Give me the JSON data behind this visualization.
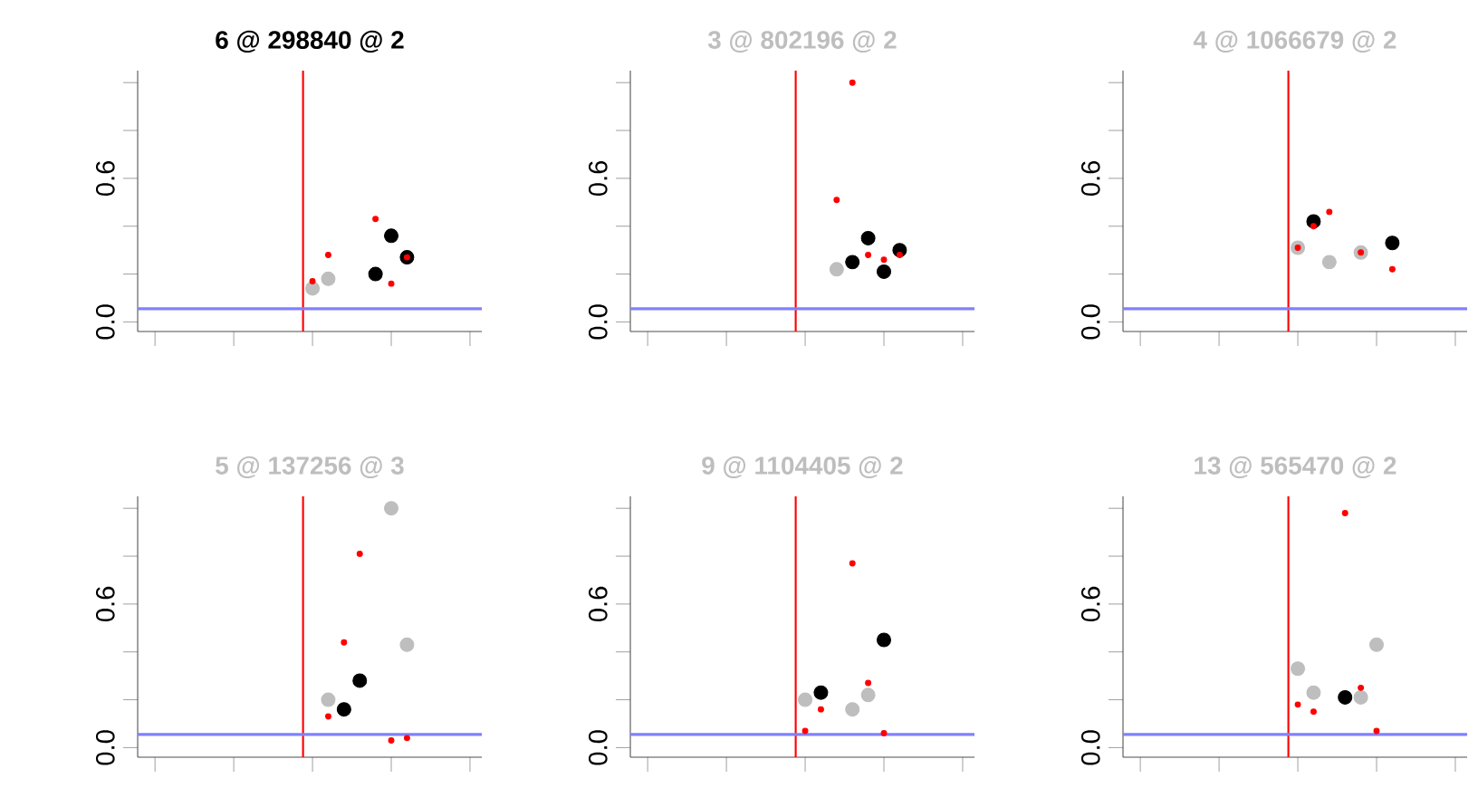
{
  "chart_data": [
    {
      "type": "scatter",
      "title": "6 @ 298840 @ 2",
      "marker": "circle",
      "tick_labels": "y",
      "ylim": [
        -0.04,
        1.05
      ],
      "categories": [
        null,
        null,
        null,
        null,
        null,
        null,
        null,
        null,
        null,
        null,
        null,
        null,
        null,
        null,
        null,
        null,
        null,
        null,
        null,
        null,
        null,
        null
      ],
      "yticks": [
        {
          "value": 0,
          "label": "0.0"
        },
        {
          "value": 0.2,
          "label": null
        },
        {
          "value": 0.4,
          "label": null
        },
        {
          "value": 0.6,
          "label": "0.6"
        },
        {
          "value": 0.8,
          "label": null
        },
        {
          "value": 1.0,
          "label": null
        }
      ],
      "ref_lines": [
        {
          "axis": "y",
          "value": 0.055,
          "color": "#8080ff"
        }
      ],
      "series": [
        {
          "color": "#bebebe",
          "values": [
            null,
            null,
            null,
            null,
            null,
            null,
            null,
            null,
            null,
            null,
            null,
            0.14,
            0.18,
            null,
            null,
            null,
            null,
            null,
            null,
            null,
            null,
            null
          ]
        },
        {
          "color": "#000000",
          "values": [
            null,
            null,
            null,
            null,
            null,
            null,
            null,
            null,
            null,
            null,
            null,
            null,
            null,
            null,
            null,
            0.2,
            0.36,
            0.27,
            null,
            null,
            null,
            null
          ]
        },
        {
          "color": "#ff0000",
          "values": [
            null,
            null,
            null,
            null,
            null,
            null,
            null,
            null,
            null,
            null,
            null,
            0.17,
            0.28,
            null,
            null,
            0.43,
            0.16,
            0.27,
            null,
            null,
            null,
            null
          ]
        }
      ]
    },
    {
      "type": "scatter",
      "title": "3 @ 802196 @ 2",
      "marker": "circle",
      "tick_labels": "y",
      "ylim": [
        -0.04,
        1.05
      ],
      "categories": [
        null,
        null,
        null,
        null,
        null,
        null,
        null,
        null,
        null,
        null,
        null,
        null,
        null,
        null,
        null,
        null,
        null,
        null,
        null,
        null,
        null,
        null
      ],
      "yticks": [
        {
          "value": 0,
          "label": "0.0"
        },
        {
          "value": 0.2,
          "label": null
        },
        {
          "value": 0.4,
          "label": null
        },
        {
          "value": 0.6,
          "label": "0.6"
        },
        {
          "value": 0.8,
          "label": null
        },
        {
          "value": 1.0,
          "label": null
        }
      ],
      "ref_lines": [
        {
          "axis": "y",
          "value": 0.055,
          "color": "#8080ff"
        }
      ],
      "series": [
        {
          "color": "#bebebe",
          "values": [
            null,
            null,
            null,
            null,
            null,
            null,
            null,
            null,
            null,
            null,
            null,
            null,
            null,
            0.22,
            null,
            null,
            null,
            null,
            null,
            null,
            null,
            null
          ]
        },
        {
          "color": "#000000",
          "values": [
            null,
            null,
            null,
            null,
            null,
            null,
            null,
            null,
            null,
            null,
            null,
            null,
            null,
            null,
            0.25,
            0.35,
            0.21,
            0.3,
            null,
            null,
            null,
            null
          ]
        },
        {
          "color": "#ff0000",
          "values": [
            null,
            null,
            null,
            null,
            null,
            null,
            null,
            null,
            null,
            null,
            null,
            null,
            null,
            0.51,
            1.0,
            0.28,
            0.26,
            0.28,
            null,
            null,
            null,
            null
          ]
        }
      ]
    },
    {
      "type": "scatter",
      "title": "4 @ 1066679 @ 2",
      "marker": "circle",
      "tick_labels": "y",
      "ylim": [
        -0.04,
        1.05
      ],
      "categories": [
        null,
        null,
        null,
        null,
        null,
        null,
        null,
        null,
        null,
        null,
        null,
        null,
        null,
        null,
        null,
        null,
        null,
        null,
        null,
        null,
        null,
        null
      ],
      "yticks": [
        {
          "value": 0,
          "label": "0.0"
        },
        {
          "value": 0.2,
          "label": null
        },
        {
          "value": 0.4,
          "label": null
        },
        {
          "value": 0.6,
          "label": "0.6"
        },
        {
          "value": 0.8,
          "label": null
        },
        {
          "value": 1.0,
          "label": null
        }
      ],
      "ref_lines": [
        {
          "axis": "y",
          "value": 0.055,
          "color": "#8080ff"
        }
      ],
      "series": [
        {
          "color": "#bebebe",
          "values": [
            null,
            null,
            null,
            null,
            null,
            null,
            null,
            null,
            null,
            null,
            null,
            0.31,
            null,
            0.25,
            null,
            0.29,
            null,
            null,
            null,
            null,
            null,
            null
          ]
        },
        {
          "color": "#000000",
          "values": [
            null,
            null,
            null,
            null,
            null,
            null,
            null,
            null,
            null,
            null,
            null,
            null,
            0.42,
            null,
            null,
            null,
            null,
            0.33,
            null,
            null,
            null,
            null
          ]
        },
        {
          "color": "#ff0000",
          "values": [
            null,
            null,
            null,
            null,
            null,
            null,
            null,
            null,
            null,
            null,
            null,
            0.31,
            0.4,
            0.46,
            null,
            0.29,
            null,
            0.22,
            null,
            null,
            null,
            null
          ]
        }
      ]
    },
    {
      "type": "scatter",
      "title": "5 @ 137256 @ 3",
      "marker": "circle",
      "tick_labels": "y",
      "ylim": [
        -0.04,
        1.05
      ],
      "categories": [
        null,
        null,
        null,
        null,
        null,
        null,
        null,
        null,
        null,
        null,
        null,
        null,
        null,
        null,
        null,
        null,
        null,
        null,
        null,
        null,
        null,
        null
      ],
      "yticks": [
        {
          "value": 0,
          "label": "0.0"
        },
        {
          "value": 0.2,
          "label": null
        },
        {
          "value": 0.4,
          "label": null
        },
        {
          "value": 0.6,
          "label": "0.6"
        },
        {
          "value": 0.8,
          "label": null
        },
        {
          "value": 1.0,
          "label": null
        }
      ],
      "ref_lines": [
        {
          "axis": "y",
          "value": 0.055,
          "color": "#8080ff"
        }
      ],
      "series": [
        {
          "color": "#bebebe",
          "values": [
            null,
            null,
            null,
            null,
            null,
            null,
            null,
            null,
            null,
            null,
            null,
            null,
            0.2,
            null,
            null,
            null,
            1.0,
            0.43,
            null,
            null,
            null,
            null
          ]
        },
        {
          "color": "#000000",
          "values": [
            null,
            null,
            null,
            null,
            null,
            null,
            null,
            null,
            null,
            null,
            null,
            null,
            null,
            0.16,
            0.28,
            null,
            null,
            null,
            null,
            null,
            null,
            null
          ]
        },
        {
          "color": "#ff0000",
          "values": [
            null,
            null,
            null,
            null,
            null,
            null,
            null,
            null,
            null,
            null,
            null,
            null,
            0.13,
            0.44,
            0.81,
            null,
            0.03,
            0.04,
            null,
            null,
            null,
            null
          ]
        }
      ]
    },
    {
      "type": "scatter",
      "title": "9 @ 1104405 @ 2",
      "marker": "circle",
      "tick_labels": "y",
      "ylim": [
        -0.04,
        1.05
      ],
      "categories": [
        null,
        null,
        null,
        null,
        null,
        null,
        null,
        null,
        null,
        null,
        null,
        null,
        null,
        null,
        null,
        null,
        null,
        null,
        null,
        null,
        null,
        null
      ],
      "yticks": [
        {
          "value": 0,
          "label": "0.0"
        },
        {
          "value": 0.2,
          "label": null
        },
        {
          "value": 0.4,
          "label": null
        },
        {
          "value": 0.6,
          "label": "0.6"
        },
        {
          "value": 0.8,
          "label": null
        },
        {
          "value": 1.0,
          "label": null
        }
      ],
      "ref_lines": [
        {
          "axis": "y",
          "value": 0.055,
          "color": "#8080ff"
        }
      ],
      "series": [
        {
          "color": "#bebebe",
          "values": [
            null,
            null,
            null,
            null,
            null,
            null,
            null,
            null,
            null,
            null,
            null,
            0.2,
            null,
            null,
            0.16,
            0.22,
            null,
            null,
            null,
            null,
            null,
            null
          ]
        },
        {
          "color": "#000000",
          "values": [
            null,
            null,
            null,
            null,
            null,
            null,
            null,
            null,
            null,
            null,
            null,
            null,
            0.23,
            null,
            null,
            null,
            0.45,
            null,
            null,
            null,
            null,
            null
          ]
        },
        {
          "color": "#ff0000",
          "values": [
            null,
            null,
            null,
            null,
            null,
            null,
            null,
            null,
            null,
            null,
            null,
            0.07,
            0.16,
            null,
            0.77,
            0.27,
            0.06,
            null,
            null,
            null,
            null,
            null
          ]
        }
      ]
    },
    {
      "type": "scatter",
      "title": "13 @ 565470 @ 2",
      "marker": "circle",
      "tick_labels": "y",
      "ylim": [
        -0.04,
        1.05
      ],
      "categories": [
        null,
        null,
        null,
        null,
        null,
        null,
        null,
        null,
        null,
        null,
        null,
        null,
        null,
        null,
        null,
        null,
        null,
        null,
        null,
        null,
        null,
        null
      ],
      "yticks": [
        {
          "value": 0,
          "label": "0.0"
        },
        {
          "value": 0.2,
          "label": null
        },
        {
          "value": 0.4,
          "label": null
        },
        {
          "value": 0.6,
          "label": "0.6"
        },
        {
          "value": 0.8,
          "label": null
        },
        {
          "value": 1.0,
          "label": null
        }
      ],
      "ref_lines": [
        {
          "axis": "y",
          "value": 0.055,
          "color": "#8080ff"
        }
      ],
      "series": [
        {
          "color": "#bebebe",
          "values": [
            null,
            null,
            null,
            null,
            null,
            null,
            null,
            null,
            null,
            null,
            null,
            0.33,
            0.23,
            null,
            null,
            0.21,
            0.43,
            null,
            null,
            null,
            null,
            null
          ]
        },
        {
          "color": "#000000",
          "values": [
            null,
            null,
            null,
            null,
            null,
            null,
            null,
            null,
            null,
            null,
            null,
            null,
            null,
            null,
            0.21,
            null,
            null,
            null,
            null,
            null,
            null,
            null
          ]
        },
        {
          "color": "#ff0000",
          "values": [
            null,
            null,
            null,
            null,
            null,
            null,
            null,
            null,
            null,
            null,
            null,
            0.18,
            0.15,
            null,
            0.98,
            0.25,
            0.07,
            null,
            null,
            null,
            null,
            null
          ]
        }
      ]
    }
  ]
}
